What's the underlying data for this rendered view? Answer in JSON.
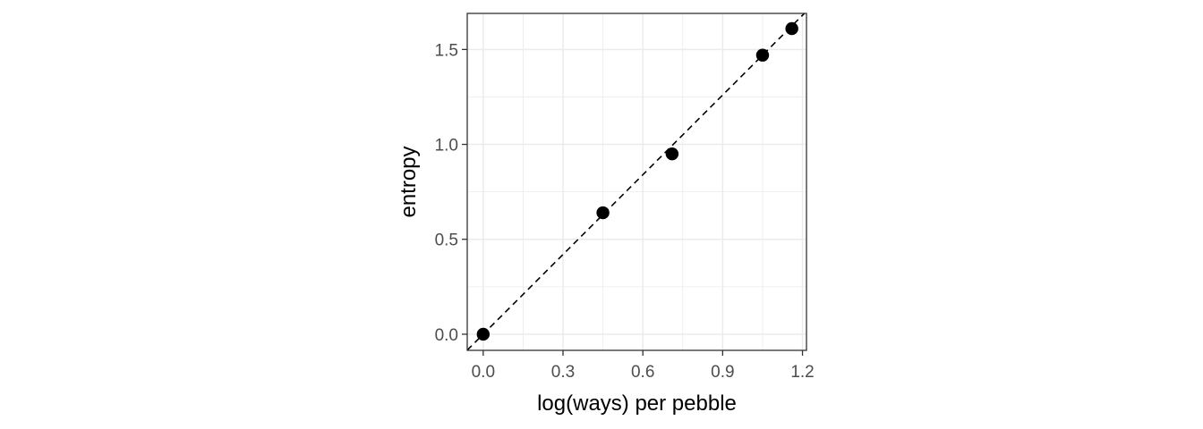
{
  "chart_data": {
    "type": "scatter",
    "xlabel": "log(ways) per pebble",
    "ylabel": "entropy",
    "xlim": [
      -0.06,
      1.215
    ],
    "ylim": [
      -0.085,
      1.69
    ],
    "x_ticks": [
      0.0,
      0.3,
      0.6,
      0.9,
      1.2
    ],
    "x_tick_labels": [
      "0.0",
      "0.3",
      "0.6",
      "0.9",
      "1.2"
    ],
    "y_ticks": [
      0.0,
      0.5,
      1.0,
      1.5
    ],
    "y_tick_labels": [
      "0.0",
      "0.5",
      "1.0",
      "1.5"
    ],
    "grid": true,
    "points": [
      {
        "x": 0.0,
        "y": 0.0
      },
      {
        "x": 0.45,
        "y": 0.64
      },
      {
        "x": 0.71,
        "y": 0.95
      },
      {
        "x": 1.05,
        "y": 1.47
      },
      {
        "x": 1.16,
        "y": 1.61
      }
    ],
    "reference_line": {
      "style": "dashed",
      "intercept": 0,
      "slope": 1.4
    },
    "colors": {
      "points": "#000000",
      "line": "#000000",
      "grid": "#ebebeb",
      "panel_border": "#333333",
      "tick_text": "#4d4d4d"
    }
  }
}
